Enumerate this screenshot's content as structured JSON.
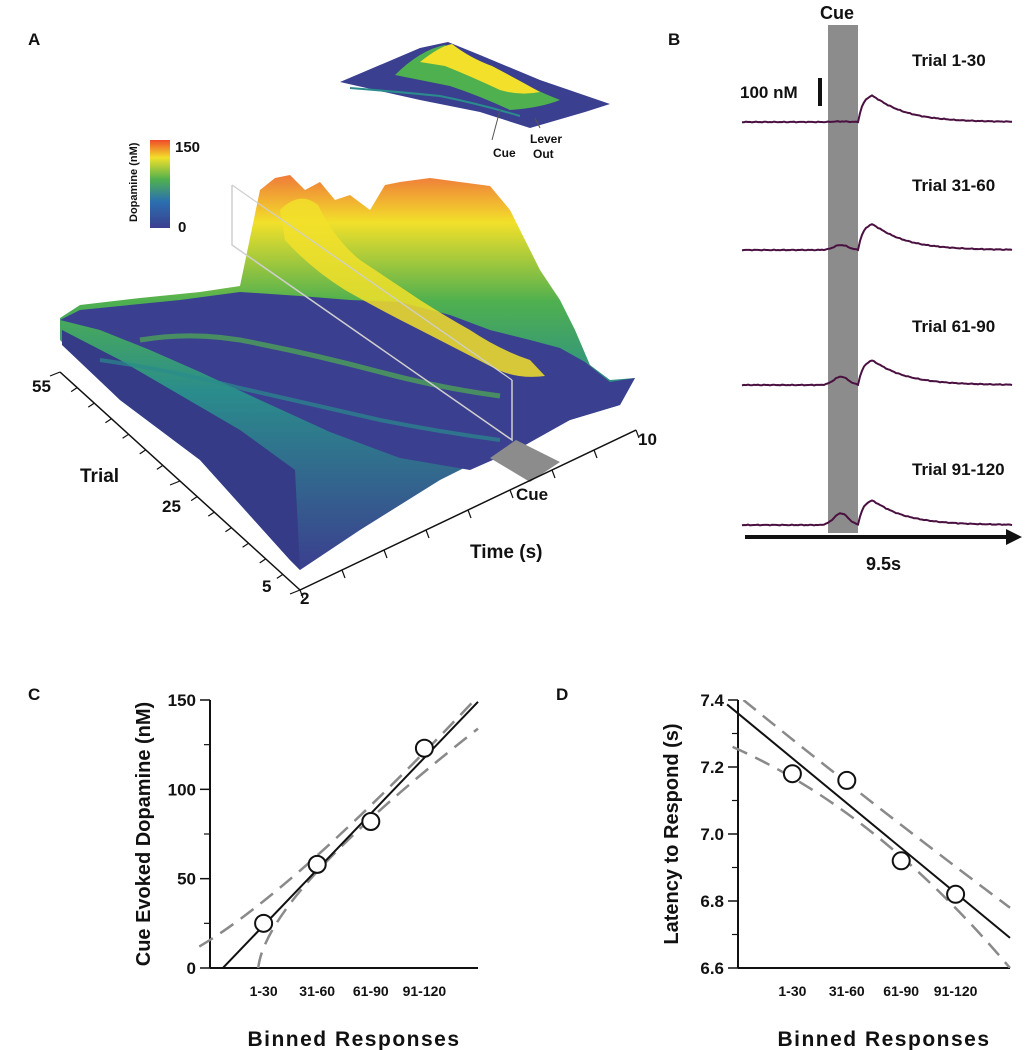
{
  "panels": {
    "A": "A",
    "B": "B",
    "C": "C",
    "D": "D"
  },
  "colors": {
    "surface_low": "#3b3f8f",
    "surface_mid": "#2a8c8c",
    "surface_green": "#4fb04f",
    "surface_high": "#f2e02a",
    "surface_peak": "#f07a3a",
    "trace": "#4a1040",
    "cue_bar": "#8c8c8c",
    "ci_dash": "#8a8a8a"
  },
  "chart_data": [
    {
      "id": "A",
      "type": "surface3d",
      "colorbar": {
        "label": "Dopamine (nM)",
        "max_label": "150",
        "min_label": "0",
        "range": [
          0,
          150
        ]
      },
      "trial_axis": {
        "label": "Trial",
        "ticks": [
          "55",
          "25",
          "5"
        ]
      },
      "time_axis": {
        "label": "Time (s)",
        "ticks": [
          "2",
          "10"
        ]
      },
      "annotations": {
        "cue": "Cue",
        "inset_cue": "Cue",
        "inset_lever": "Lever",
        "inset_out": "Out"
      }
    },
    {
      "id": "B",
      "type": "line",
      "title": "Cue",
      "scale_bar_label": "100 nM",
      "time_label": "9.5s",
      "traces": [
        {
          "name": "Trial 1-30",
          "cue_bump": 2,
          "peak": 100
        },
        {
          "name": "Trial 31-60",
          "cue_bump": 18,
          "peak": 98
        },
        {
          "name": "Trial 61-90",
          "cue_bump": 30,
          "peak": 93
        },
        {
          "name": "Trial 91-120",
          "cue_bump": 42,
          "peak": 93
        }
      ]
    },
    {
      "id": "C",
      "type": "scatter",
      "xlabel": "Binned Responses",
      "ylabel": "Cue Evoked Dopamine (nM)",
      "categories": [
        "1-30",
        "31-60",
        "61-90",
        "91-120"
      ],
      "x": [
        1,
        2,
        3,
        4
      ],
      "y": [
        25,
        58,
        82,
        123
      ],
      "yticks": [
        "0",
        "50",
        "100",
        "150"
      ],
      "ylim": [
        0,
        150
      ],
      "xlim": [
        0,
        5
      ],
      "fit": {
        "slope": 31.3,
        "intercept": -7.5
      },
      "ci_upper": [
        [
          -0.2,
          12
        ],
        [
          2,
          63
        ],
        [
          5,
          152
        ]
      ],
      "ci_lower": [
        [
          0.9,
          0
        ],
        [
          2,
          54
        ],
        [
          5,
          134
        ]
      ]
    },
    {
      "id": "D",
      "type": "scatter",
      "xlabel": "Binned Responses",
      "ylabel": "Latency to Respond (s)",
      "categories": [
        "1-30",
        "31-60",
        "61-90",
        "91-120"
      ],
      "x": [
        1,
        2,
        3,
        4
      ],
      "y": [
        7.18,
        7.16,
        6.92,
        6.82
      ],
      "yticks": [
        "6.6",
        "6.8",
        "7.0",
        "7.2",
        "7.4"
      ],
      "ylim": [
        6.6,
        7.4
      ],
      "xlim": [
        0,
        5
      ],
      "fit": {
        "slope": -0.134,
        "intercept": 7.36
      },
      "ci_upper": [
        [
          0.1,
          7.4
        ],
        [
          2.5,
          7.09
        ],
        [
          5,
          6.78
        ]
      ],
      "ci_lower": [
        [
          -0.1,
          7.26
        ],
        [
          2.5,
          7.0
        ],
        [
          5,
          6.6
        ]
      ]
    }
  ]
}
